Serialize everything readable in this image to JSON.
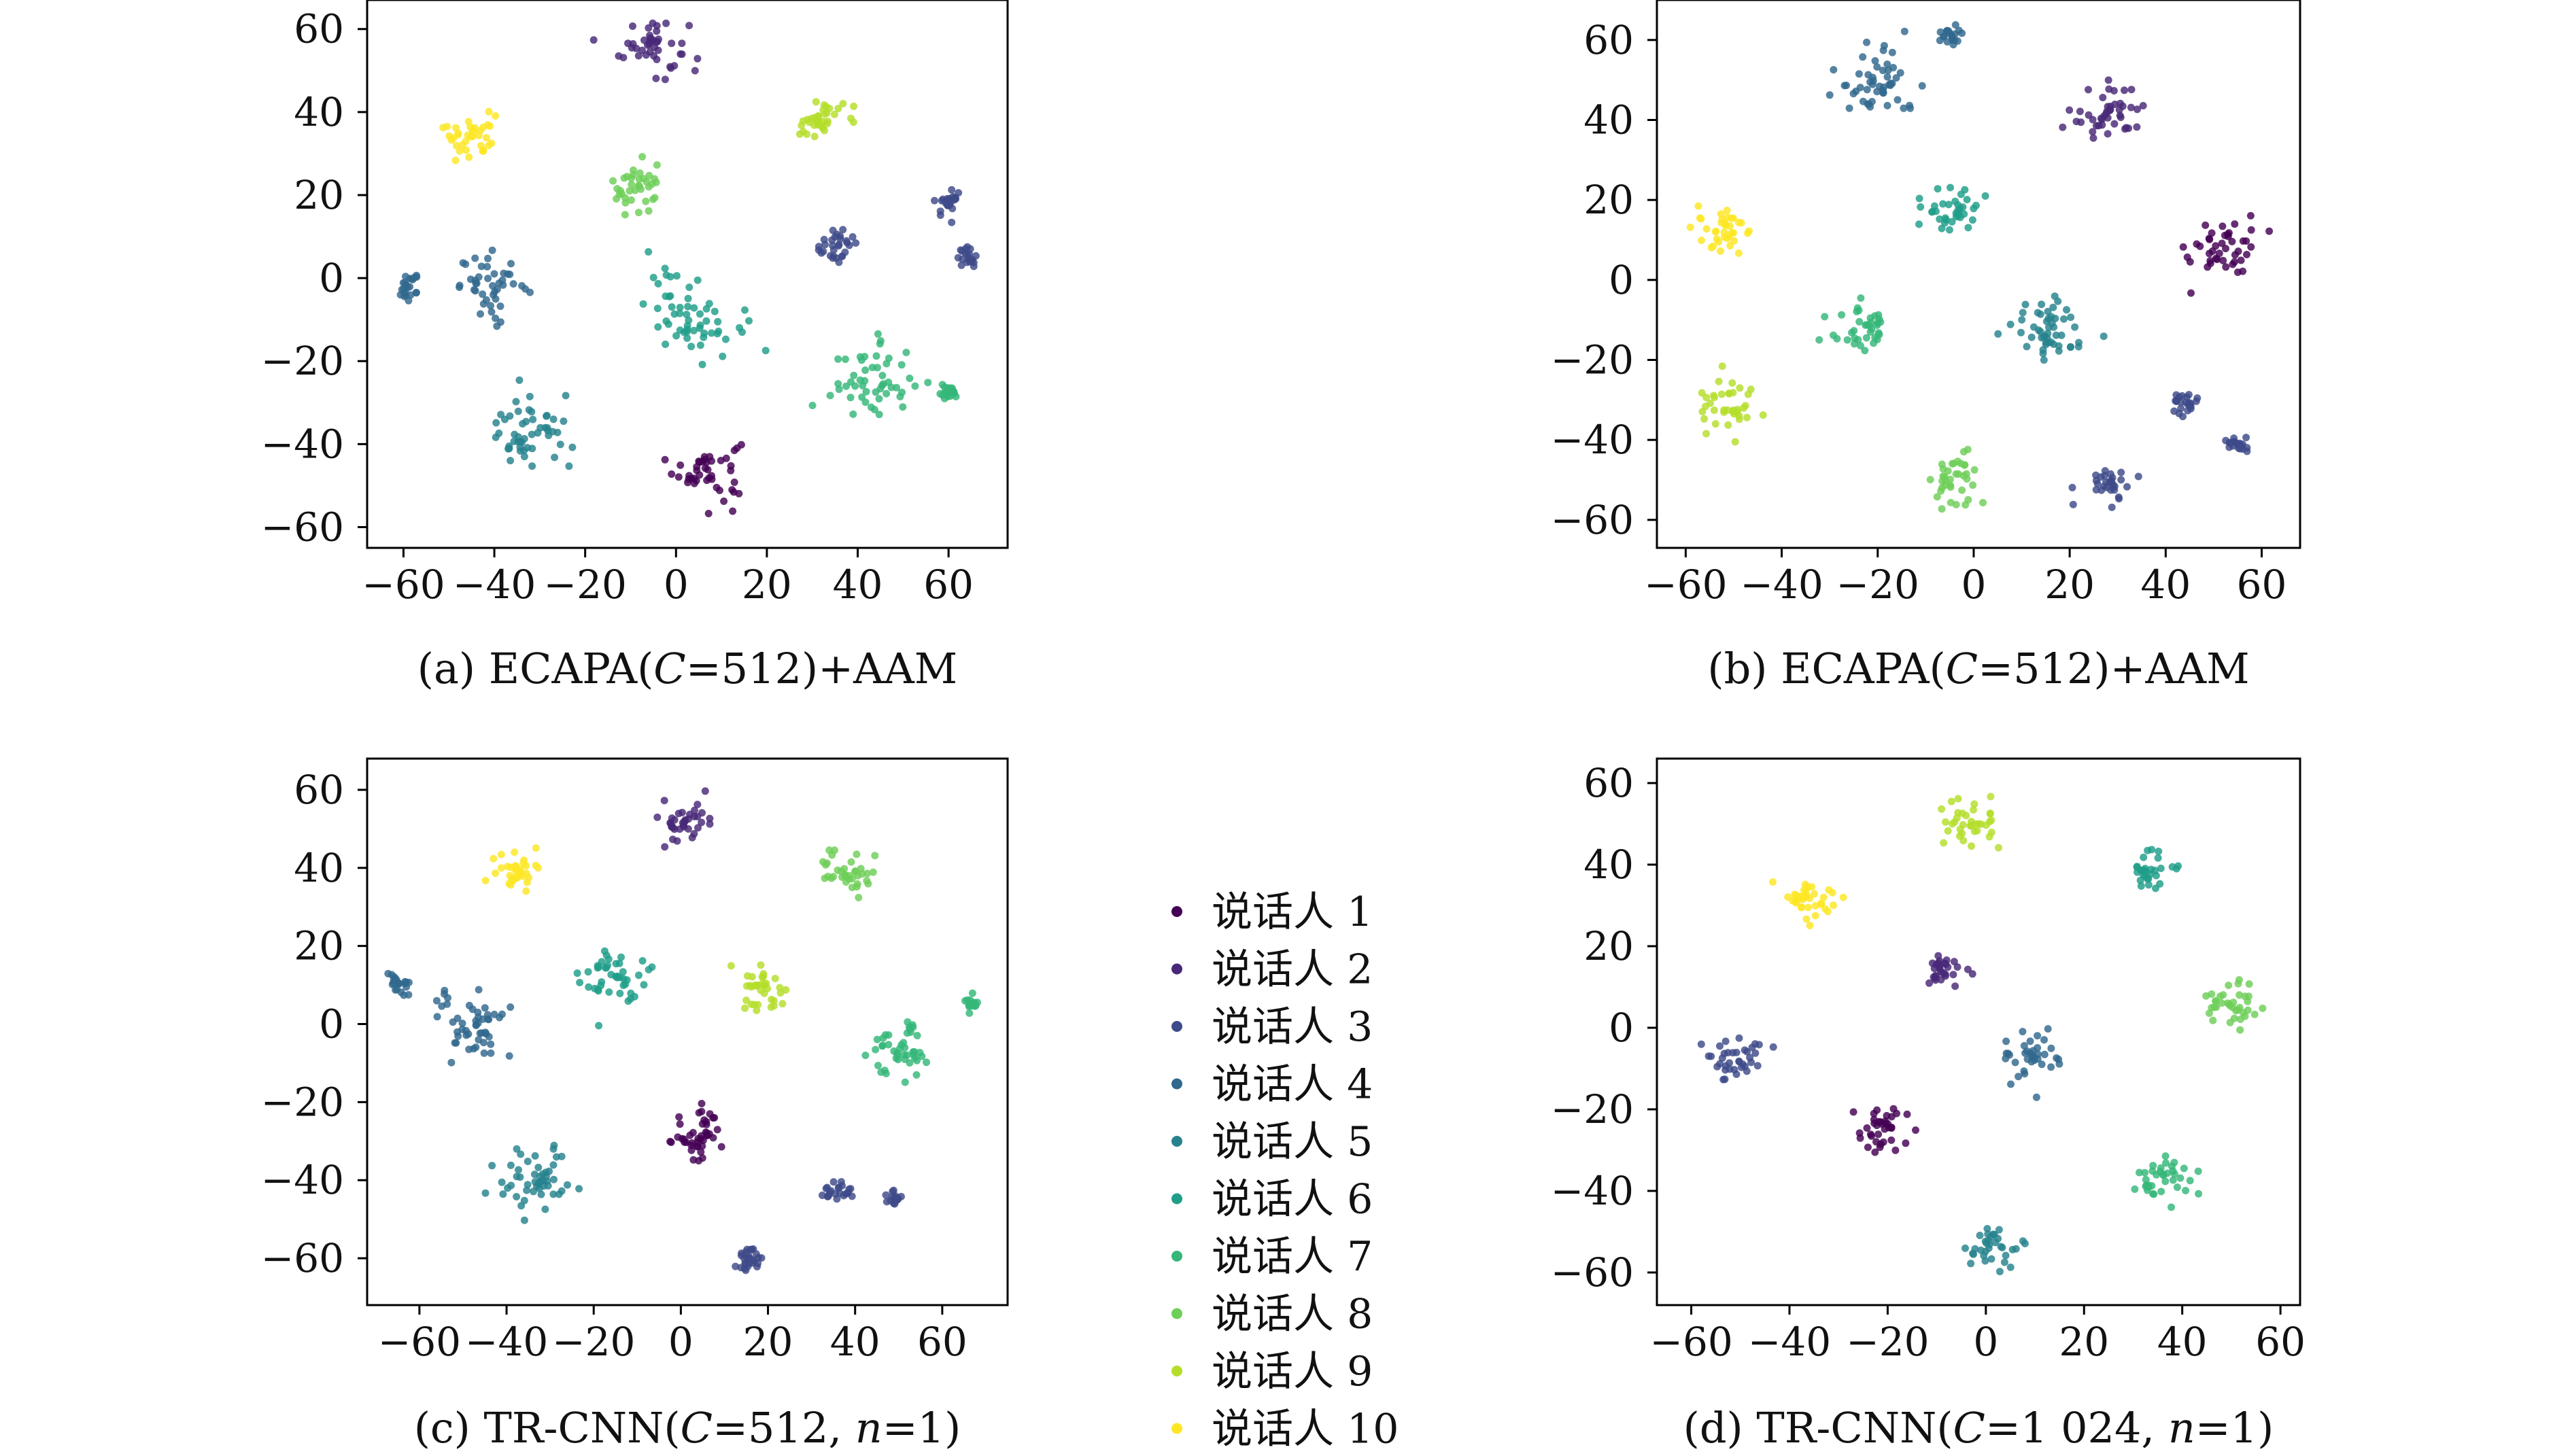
{
  "chart_data": [
    {
      "type": "scatter",
      "caption": "(a) ECAPA(C=512)+AAM",
      "xlim": [
        -68,
        73
      ],
      "ylim": [
        -65,
        67
      ],
      "xticks": [
        -60,
        -40,
        -20,
        0,
        20,
        40,
        60
      ],
      "yticks": [
        60,
        40,
        20,
        0,
        -20,
        -40,
        -60
      ],
      "grid": false,
      "clusters": [
        {
          "speaker": 1,
          "x": 7,
          "y": -46,
          "spread": 5
        },
        {
          "speaker": 2,
          "x": -5,
          "y": 56,
          "spread": 5
        },
        {
          "speaker": 3,
          "x": 35,
          "y": 8,
          "spread": 3
        },
        {
          "speaker": 3,
          "x": 60,
          "y": 18,
          "spread": 2
        },
        {
          "speaker": 3,
          "x": 64,
          "y": 5,
          "spread": 1.5
        },
        {
          "speaker": 4,
          "x": -40,
          "y": -2,
          "spread": 5
        },
        {
          "speaker": 4,
          "x": -59,
          "y": -2,
          "spread": 2
        },
        {
          "speaker": 5,
          "x": -32,
          "y": -38,
          "spread": 6
        },
        {
          "speaker": 6,
          "x": 4,
          "y": -8,
          "spread": 7
        },
        {
          "speaker": 7,
          "x": 43,
          "y": -25,
          "spread": 6
        },
        {
          "speaker": 7,
          "x": 60,
          "y": -28,
          "spread": 1.5
        },
        {
          "speaker": 8,
          "x": -8,
          "y": 22,
          "spread": 4
        },
        {
          "speaker": 9,
          "x": 31,
          "y": 38,
          "spread": 4
        },
        {
          "speaker": 10,
          "x": -45,
          "y": 35,
          "spread": 4
        }
      ]
    },
    {
      "type": "scatter",
      "caption": "(b) ECAPA(C=512)+AAM",
      "xlim": [
        -66,
        68
      ],
      "ylim": [
        -67,
        70
      ],
      "xticks": [
        -60,
        -40,
        -20,
        0,
        20,
        40,
        60
      ],
      "yticks": [
        60,
        40,
        20,
        0,
        -20,
        -40,
        -60
      ],
      "grid": false,
      "clusters": [
        {
          "speaker": 1,
          "x": 52,
          "y": 8,
          "spread": 5
        },
        {
          "speaker": 2,
          "x": 28,
          "y": 42,
          "spread": 5
        },
        {
          "speaker": 3,
          "x": 28,
          "y": -51,
          "spread": 3
        },
        {
          "speaker": 3,
          "x": 44,
          "y": -31,
          "spread": 2
        },
        {
          "speaker": 3,
          "x": 55,
          "y": -41,
          "spread": 1.5
        },
        {
          "speaker": 4,
          "x": -5,
          "y": 61,
          "spread": 1.5
        },
        {
          "speaker": 4,
          "x": -20,
          "y": 50,
          "spread": 6
        },
        {
          "speaker": 5,
          "x": 15,
          "y": -13,
          "spread": 6
        },
        {
          "speaker": 6,
          "x": -5,
          "y": 18,
          "spread": 4
        },
        {
          "speaker": 7,
          "x": -23,
          "y": -12,
          "spread": 4
        },
        {
          "speaker": 8,
          "x": -4,
          "y": -50,
          "spread": 4
        },
        {
          "speaker": 9,
          "x": -51,
          "y": -31,
          "spread": 4
        },
        {
          "speaker": 10,
          "x": -53,
          "y": 13,
          "spread": 4
        }
      ]
    },
    {
      "type": "scatter",
      "caption": "(c) TR-CNN(C=512, n=1)",
      "xlim": [
        -72,
        75
      ],
      "ylim": [
        -72,
        68
      ],
      "xticks": [
        -60,
        -40,
        -20,
        0,
        20,
        40,
        60
      ],
      "yticks": [
        60,
        40,
        20,
        0,
        -20,
        -40,
        -60
      ],
      "grid": false,
      "clusters": [
        {
          "speaker": 1,
          "x": 5,
          "y": -28,
          "spread": 5
        },
        {
          "speaker": 2,
          "x": 0,
          "y": 52,
          "spread": 4
        },
        {
          "speaker": 3,
          "x": 16,
          "y": -61,
          "spread": 2.5
        },
        {
          "speaker": 3,
          "x": 36,
          "y": -43,
          "spread": 2
        },
        {
          "speaker": 3,
          "x": 49,
          "y": -45,
          "spread": 1.2
        },
        {
          "speaker": 4,
          "x": -48,
          "y": 0,
          "spread": 6
        },
        {
          "speaker": 4,
          "x": -65,
          "y": 10,
          "spread": 2
        },
        {
          "speaker": 5,
          "x": -33,
          "y": -40,
          "spread": 6
        },
        {
          "speaker": 6,
          "x": -15,
          "y": 12,
          "spread": 5
        },
        {
          "speaker": 7,
          "x": 50,
          "y": -7,
          "spread": 5
        },
        {
          "speaker": 7,
          "x": 67,
          "y": 5,
          "spread": 1.2
        },
        {
          "speaker": 8,
          "x": 38,
          "y": 39,
          "spread": 4
        },
        {
          "speaker": 9,
          "x": 18,
          "y": 9,
          "spread": 4
        },
        {
          "speaker": 10,
          "x": -38,
          "y": 39,
          "spread": 3.5
        }
      ]
    },
    {
      "type": "scatter",
      "caption": "(d) TR-CNN(C=1 024, n=1)",
      "xlim": [
        -67,
        64
      ],
      "ylim": [
        -68,
        66
      ],
      "xticks": [
        -60,
        -40,
        -20,
        0,
        20,
        40,
        60
      ],
      "yticks": [
        60,
        40,
        20,
        0,
        -20,
        -40,
        -60
      ],
      "grid": false,
      "clusters": [
        {
          "speaker": 1,
          "x": -22,
          "y": -25,
          "spread": 4
        },
        {
          "speaker": 2,
          "x": -9,
          "y": 13,
          "spread": 3
        },
        {
          "speaker": 3,
          "x": -51,
          "y": -7,
          "spread": 4
        },
        {
          "speaker": 4,
          "x": 10,
          "y": -7,
          "spread": 4
        },
        {
          "speaker": 5,
          "x": 1,
          "y": -54,
          "spread": 3.5
        },
        {
          "speaker": 6,
          "x": 34,
          "y": 38,
          "spread": 3
        },
        {
          "speaker": 7,
          "x": 36,
          "y": -37,
          "spread": 4
        },
        {
          "speaker": 8,
          "x": 50,
          "y": 6,
          "spread": 4
        },
        {
          "speaker": 9,
          "x": -3,
          "y": 50,
          "spread": 4
        },
        {
          "speaker": 10,
          "x": -36,
          "y": 31,
          "spread": 4
        }
      ]
    }
  ],
  "legend": {
    "items": [
      "说话人 1",
      "说话人 2",
      "说话人 3",
      "说话人 4",
      "说话人 5",
      "说话人 6",
      "说话人 7",
      "说话人 8",
      "说话人 9",
      "说话人 10"
    ],
    "colors": [
      "#440154",
      "#482878",
      "#3e4a89",
      "#31688e",
      "#26828e",
      "#1f9e89",
      "#35b779",
      "#6ece58",
      "#b5de2b",
      "#fde725"
    ]
  }
}
